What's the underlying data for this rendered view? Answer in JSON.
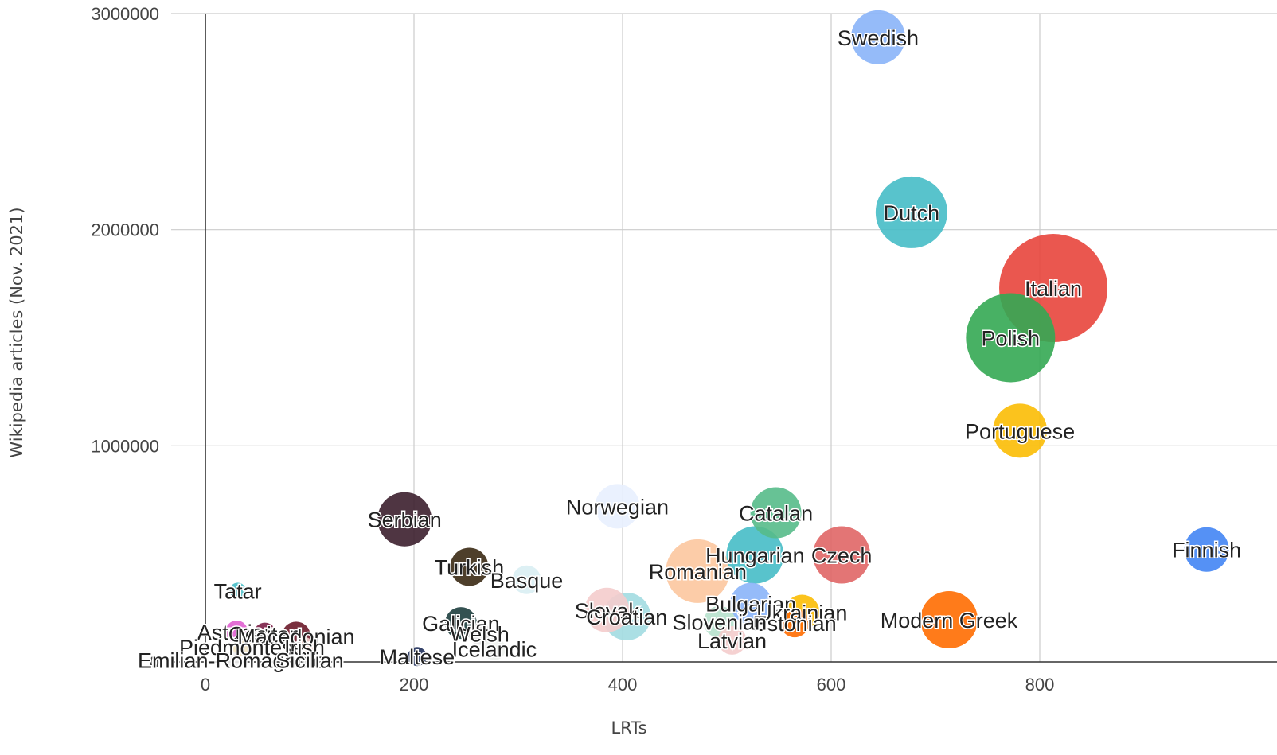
{
  "chart_data": {
    "type": "scatter",
    "title": "",
    "xlabel": "LRTs",
    "ylabel": "Wikipedia articles (Nov. 2021)",
    "xlim": [
      -35,
      1000
    ],
    "ylim": [
      0,
      3000000
    ],
    "xticks": [
      0,
      200,
      400,
      600,
      800
    ],
    "xtick_labels": [
      "0",
      "200",
      "400",
      "600",
      "800"
    ],
    "yticks": [
      0,
      1000000,
      2000000,
      3000000
    ],
    "ytick_labels": [
      "0",
      "1000000",
      "2000000",
      "3000000"
    ],
    "grid": true,
    "legend": "none",
    "points": [
      {
        "label": "Swedish",
        "x": 645,
        "y": 2890000,
        "size": 34,
        "color": "#8ab4f8"
      },
      {
        "label": "Dutch",
        "x": 677,
        "y": 2080000,
        "size": 45,
        "color": "#46bdc6"
      },
      {
        "label": "Italian",
        "x": 813,
        "y": 1730000,
        "size": 68,
        "color": "#e8453c"
      },
      {
        "label": "Polish",
        "x": 772,
        "y": 1500000,
        "size": 56,
        "color": "#34a853"
      },
      {
        "label": "Portuguese",
        "x": 781,
        "y": 1070000,
        "size": 34,
        "color": "#fbbc04"
      },
      {
        "label": "Finnish",
        "x": 960,
        "y": 520000,
        "size": 28,
        "color": "#4285f4"
      },
      {
        "label": "Norwegian",
        "x": 395,
        "y": 720000,
        "size": 28,
        "color": "#e8f0fe"
      },
      {
        "label": "Catalan",
        "x": 547,
        "y": 690000,
        "size": 32,
        "color": "#57bb8a"
      },
      {
        "label": "Czech",
        "x": 610,
        "y": 495000,
        "size": 36,
        "color": "#e06666"
      },
      {
        "label": "Hungarian",
        "x": 527,
        "y": 495000,
        "size": 36,
        "color": "#46bdc6"
      },
      {
        "label": "Romanian",
        "x": 472,
        "y": 420000,
        "size": 40,
        "color": "#fcc79f"
      },
      {
        "label": "Bulgarian",
        "x": 523,
        "y": 270000,
        "size": 26,
        "color": "#8ab4f8"
      },
      {
        "label": "Ukrainian",
        "x": 572,
        "y": 230000,
        "size": 22,
        "color": "#fbbc04"
      },
      {
        "label": "Estonian",
        "x": 565,
        "y": 180000,
        "size": 18,
        "color": "#ff6d01"
      },
      {
        "label": "Modern Greek",
        "x": 713,
        "y": 195000,
        "size": 36,
        "color": "#ff6d01"
      },
      {
        "label": "Slovak",
        "x": 385,
        "y": 240000,
        "size": 28,
        "color": "#f4cccc"
      },
      {
        "label": "Croatian",
        "x": 404,
        "y": 210000,
        "size": 30,
        "color": "#a2dbe1"
      },
      {
        "label": "Slovenian",
        "x": 493,
        "y": 185000,
        "size": 20,
        "color": "#b7e1cd"
      },
      {
        "label": "Latvian",
        "x": 505,
        "y": 100000,
        "size": 18,
        "color": "#f4cccc"
      },
      {
        "label": "Serbian",
        "x": 191,
        "y": 660000,
        "size": 34,
        "color": "#3c1f2e"
      },
      {
        "label": "Turkish",
        "x": 253,
        "y": 440000,
        "size": 24,
        "color": "#3b2a14"
      },
      {
        "label": "Basque",
        "x": 308,
        "y": 380000,
        "size": 18,
        "color": "#d9eef3"
      },
      {
        "label": "Tatar",
        "x": 31,
        "y": 330000,
        "size": 10,
        "color": "#46bdc6"
      },
      {
        "label": "Galician",
        "x": 245,
        "y": 180000,
        "size": 20,
        "color": "#1e3f3f"
      },
      {
        "label": "Welsh",
        "x": 263,
        "y": 130000,
        "size": 14,
        "color": "#e6e6e6"
      },
      {
        "label": "Icelandic",
        "x": 277,
        "y": 60000,
        "size": 14,
        "color": "#eef2ee"
      },
      {
        "label": "Maltese",
        "x": 203,
        "y": 25000,
        "size": 12,
        "color": "#1f2f5a"
      },
      {
        "label": "Asturian",
        "x": 30,
        "y": 140000,
        "size": 14,
        "color": "#e05fd0"
      },
      {
        "label": "Occitan",
        "x": 57,
        "y": 130000,
        "size": 14,
        "color": "#7b1f47"
      },
      {
        "label": "Macedonian",
        "x": 87,
        "y": 120000,
        "size": 18,
        "color": "#6b1a2a"
      },
      {
        "label": "Piedmontese",
        "x": 35,
        "y": 70000,
        "size": 12,
        "color": "#f3e6c6"
      },
      {
        "label": "Irish",
        "x": 95,
        "y": 70000,
        "size": 12,
        "color": "#f4d6d0"
      },
      {
        "label": "Emilian-Romagnolo",
        "x": 25,
        "y": 10000,
        "size": 10,
        "color": "#eeeeee"
      },
      {
        "label": "Sicilian",
        "x": 100,
        "y": 10000,
        "size": 10,
        "color": "#e8e8e8"
      }
    ]
  }
}
